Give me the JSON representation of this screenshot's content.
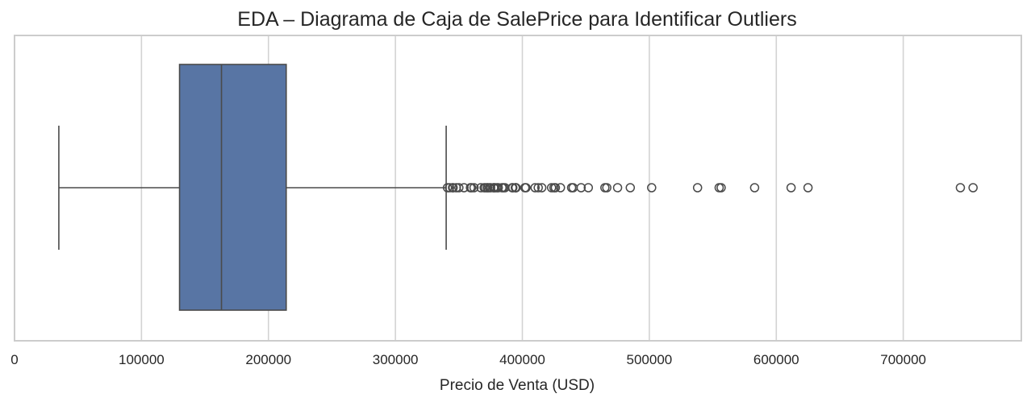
{
  "chart_data": {
    "type": "boxplot",
    "orientation": "horizontal",
    "title": "EDA – Diagrama de Caja de SalePrice para Identificar Outliers",
    "xlabel": "Precio de Venta (USD)",
    "ylabel": "",
    "xlim": [
      0,
      793000
    ],
    "x_ticks": [
      0,
      100000,
      200000,
      300000,
      400000,
      500000,
      600000,
      700000
    ],
    "x_tick_labels": [
      "0",
      "100000",
      "200000",
      "300000",
      "400000",
      "500000",
      "600000",
      "700000"
    ],
    "grid": true,
    "box": {
      "whisker_low": 34900,
      "q1": 129975,
      "median": 163000,
      "q3": 214000,
      "whisker_high": 340000
    },
    "outliers": [
      341000,
      342643,
      345000,
      345474,
      348000,
      350000,
      354000,
      359100,
      360000,
      361919,
      367294,
      369900,
      370878,
      372402,
      372500,
      374000,
      375000,
      377426,
      377500,
      378500,
      380000,
      381000,
      383970,
      385000,
      386250,
      392000,
      392500,
      394432,
      394617,
      395000,
      402000,
      402861,
      410000,
      412500,
      415298,
      423000,
      424870,
      426000,
      430000,
      438780,
      440000,
      446261,
      451950,
      465000,
      466500,
      475000,
      485000,
      501837,
      538000,
      555000,
      556581,
      582933,
      611657,
      625000,
      745000,
      755000
    ],
    "colors": {
      "box_fill": "#5875a4",
      "line": "#4a4a4a",
      "grid": "#d3d3d3",
      "frame": "#cccccc"
    }
  }
}
